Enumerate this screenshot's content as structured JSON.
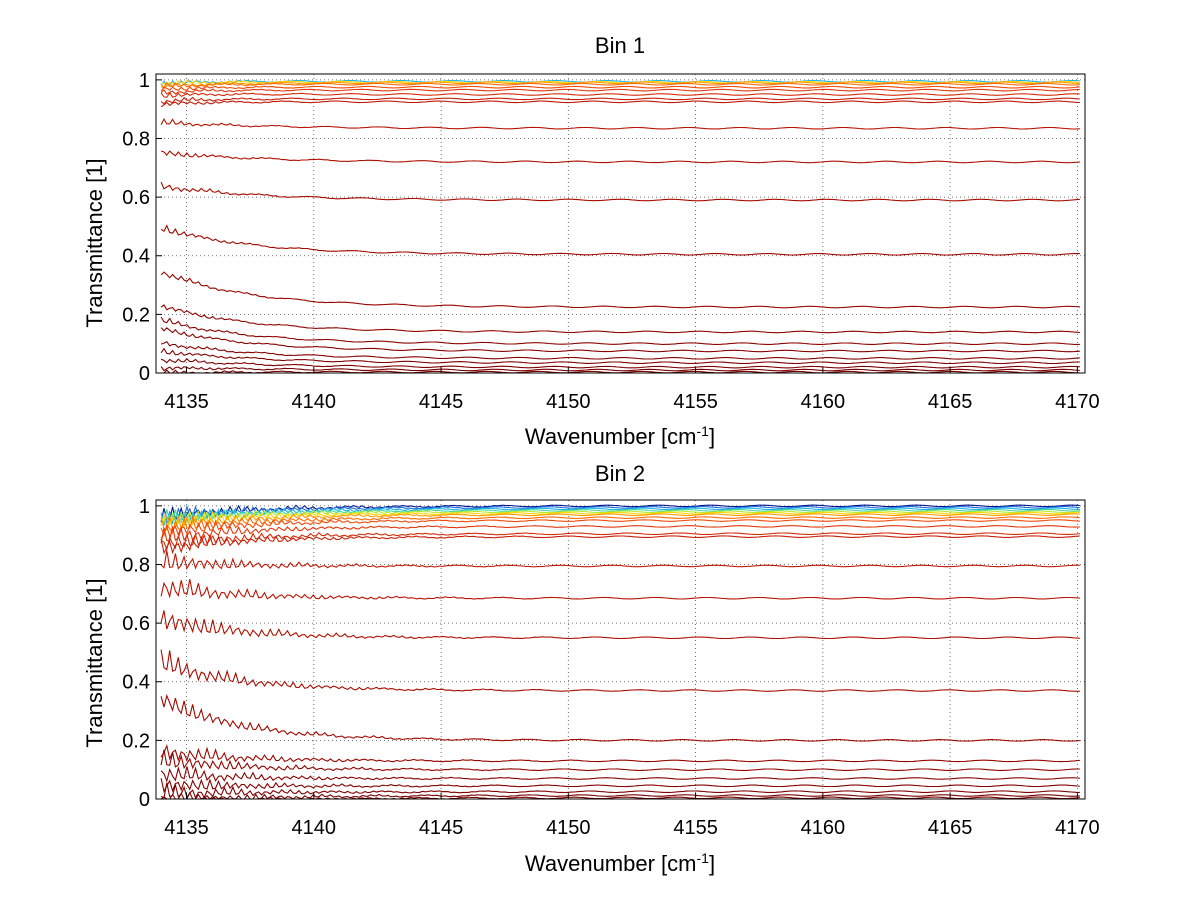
{
  "chart_data": [
    {
      "type": "line",
      "title": "Bin 1",
      "xlabel": "Wavenumber [cm",
      "xlabel_sup": "-1",
      "xlabel_end": "]",
      "ylabel": "Transmittance [1]",
      "xlim": [
        4133.8,
        4170.3
      ],
      "ylim": [
        0,
        1.02
      ],
      "grid": true,
      "xticks": [
        4135,
        4140,
        4145,
        4150,
        4155,
        4160,
        4165,
        4170
      ],
      "yticks": [
        0,
        0.2,
        0.4,
        0.6,
        0.8,
        1
      ],
      "xtick_labels": [
        "4135",
        "4140",
        "4145",
        "4150",
        "4155",
        "4160",
        "4165",
        "4170"
      ],
      "ytick_labels": [
        "0",
        "0.2",
        "0.4",
        "0.6",
        "0.8",
        "1"
      ],
      "series": [
        {
          "start": 1.0,
          "level": 0.995,
          "color": "#1fb4e8"
        },
        {
          "start": 1.0,
          "level": 0.992,
          "color": "#ffd700"
        },
        {
          "start": 0.99,
          "level": 0.99,
          "color": "#ff9a00"
        },
        {
          "start": 0.99,
          "level": 0.985,
          "color": "#ff6a00"
        },
        {
          "start": 0.98,
          "level": 0.975,
          "color": "#f04a0a"
        },
        {
          "start": 0.97,
          "level": 0.965,
          "color": "#e0380c"
        },
        {
          "start": 0.96,
          "level": 0.95,
          "color": "#d42c0a"
        },
        {
          "start": 0.94,
          "level": 0.935,
          "color": "#c82008"
        },
        {
          "start": 0.93,
          "level": 0.925,
          "color": "#c01a06"
        },
        {
          "start": 0.87,
          "level": 0.835,
          "color": "#b81404"
        },
        {
          "start": 0.77,
          "level": 0.72,
          "color": "#b01002"
        },
        {
          "start": 0.66,
          "level": 0.59,
          "color": "#a80c00"
        },
        {
          "start": 0.52,
          "level": 0.405,
          "color": "#a00800"
        },
        {
          "start": 0.37,
          "level": 0.225,
          "color": "#980600"
        },
        {
          "start": 0.25,
          "level": 0.14,
          "color": "#900400"
        },
        {
          "start": 0.2,
          "level": 0.1,
          "color": "#8c0400"
        },
        {
          "start": 0.17,
          "level": 0.075,
          "color": "#880200"
        },
        {
          "start": 0.12,
          "level": 0.05,
          "color": "#840200"
        },
        {
          "start": 0.09,
          "level": 0.035,
          "color": "#800000"
        },
        {
          "start": 0.06,
          "level": 0.02,
          "color": "#800000"
        },
        {
          "start": 0.03,
          "level": 0.01,
          "color": "#7a0000"
        },
        {
          "start": 0.01,
          "level": 0.003,
          "color": "#7a0000"
        }
      ]
    },
    {
      "type": "line",
      "title": "Bin 2",
      "xlabel": "Wavenumber [cm",
      "xlabel_sup": "-1",
      "xlabel_end": "]",
      "ylabel": "Transmittance [1]",
      "xlim": [
        4133.8,
        4170.3
      ],
      "ylim": [
        0,
        1.02
      ],
      "grid": true,
      "xticks": [
        4135,
        4140,
        4145,
        4150,
        4155,
        4160,
        4165,
        4170
      ],
      "yticks": [
        0,
        0.2,
        0.4,
        0.6,
        0.8,
        1
      ],
      "xtick_labels": [
        "4135",
        "4140",
        "4145",
        "4150",
        "4155",
        "4160",
        "4165",
        "4170"
      ],
      "ytick_labels": [
        "0",
        "0.2",
        "0.4",
        "0.6",
        "0.8",
        "1"
      ],
      "series": [
        {
          "start": 1.0,
          "level": 1.0,
          "color": "#00188f"
        },
        {
          "start": 1.0,
          "level": 0.995,
          "color": "#1f6fe0"
        },
        {
          "start": 0.99,
          "level": 0.99,
          "color": "#1fb4e8"
        },
        {
          "start": 0.99,
          "level": 0.985,
          "color": "#3fd9a0"
        },
        {
          "start": 0.99,
          "level": 0.98,
          "color": "#b8e830"
        },
        {
          "start": 0.98,
          "level": 0.975,
          "color": "#ffd700"
        },
        {
          "start": 0.97,
          "level": 0.97,
          "color": "#ff9a00"
        },
        {
          "start": 0.96,
          "level": 0.96,
          "color": "#ff6a00"
        },
        {
          "start": 0.95,
          "level": 0.95,
          "color": "#f04a0a"
        },
        {
          "start": 0.93,
          "level": 0.93,
          "color": "#e0380c"
        },
        {
          "start": 0.91,
          "level": 0.905,
          "color": "#d42c0a"
        },
        {
          "start": 0.9,
          "level": 0.895,
          "color": "#c82008"
        },
        {
          "start": 0.86,
          "level": 0.795,
          "color": "#c01a06"
        },
        {
          "start": 0.78,
          "level": 0.685,
          "color": "#b81404"
        },
        {
          "start": 0.68,
          "level": 0.55,
          "color": "#b01002"
        },
        {
          "start": 0.53,
          "level": 0.37,
          "color": "#a80c00"
        },
        {
          "start": 0.4,
          "level": 0.2,
          "color": "#a00800"
        },
        {
          "start": 0.21,
          "level": 0.13,
          "color": "#980600"
        },
        {
          "start": 0.18,
          "level": 0.1,
          "color": "#900400"
        },
        {
          "start": 0.13,
          "level": 0.07,
          "color": "#880200"
        },
        {
          "start": 0.09,
          "level": 0.045,
          "color": "#840200"
        },
        {
          "start": 0.06,
          "level": 0.025,
          "color": "#800000"
        },
        {
          "start": 0.03,
          "level": 0.012,
          "color": "#7a0000"
        },
        {
          "start": 0.01,
          "level": 0.004,
          "color": "#7a0000"
        }
      ]
    }
  ]
}
